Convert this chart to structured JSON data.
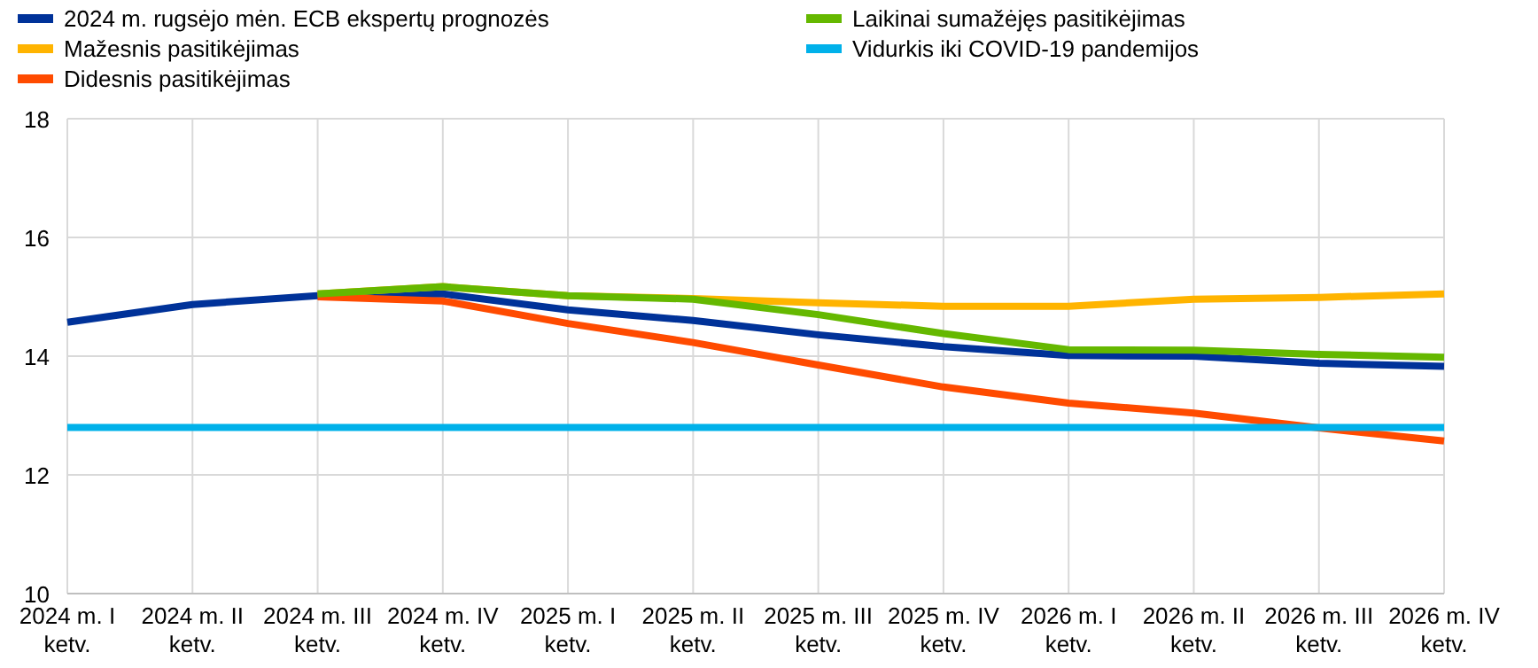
{
  "chart_data": {
    "type": "line",
    "categories": [
      "2024 m. I ketv.",
      "2024 m. II ketv.",
      "2024 m. III ketv.",
      "2024 m. IV ketv.",
      "2025 m. I ketv.",
      "2025 m. II ketv.",
      "2025 m. III ketv.",
      "2025 m. IV ketv.",
      "2026 m. I ketv.",
      "2026 m. II ketv.",
      "2026 m. III ketv.",
      "2026 m. IV ketv."
    ],
    "series": [
      {
        "name": "2024 m. rugsėjo mėn. ECB ekspertų prognozės",
        "color": "#003299",
        "values": [
          14.57,
          14.87,
          15.02,
          15.05,
          14.78,
          14.6,
          14.36,
          14.16,
          14.01,
          14.0,
          13.88,
          13.83
        ]
      },
      {
        "name": "Mažesnis pasitikėjimas",
        "color": "#ffb400",
        "values": [
          null,
          null,
          15.05,
          15.17,
          15.02,
          14.97,
          14.9,
          14.84,
          14.84,
          14.96,
          14.99,
          15.05
        ]
      },
      {
        "name": "Didesnis pasitikėjimas",
        "color": "#ff4b00",
        "values": [
          null,
          null,
          15.0,
          14.93,
          14.55,
          14.23,
          13.85,
          13.48,
          13.21,
          13.04,
          12.79,
          12.57
        ]
      },
      {
        "name": "Laikinai sumažėjęs pasitikėjimas",
        "color": "#65b800",
        "values": [
          null,
          null,
          15.05,
          15.17,
          15.02,
          14.96,
          14.7,
          14.38,
          14.11,
          14.1,
          14.03,
          13.98
        ]
      },
      {
        "name": "Vidurkis iki COVID-19 pandemijos",
        "color": "#00b1ea",
        "values": [
          12.8,
          12.8,
          12.8,
          12.8,
          12.8,
          12.8,
          12.8,
          12.8,
          12.8,
          12.8,
          12.8,
          12.8
        ]
      }
    ],
    "ylim": [
      10,
      18
    ],
    "yticks": [
      10,
      12,
      14,
      16,
      18
    ],
    "grid": true,
    "legend": "top",
    "marker": "none",
    "line_style": "solid"
  }
}
